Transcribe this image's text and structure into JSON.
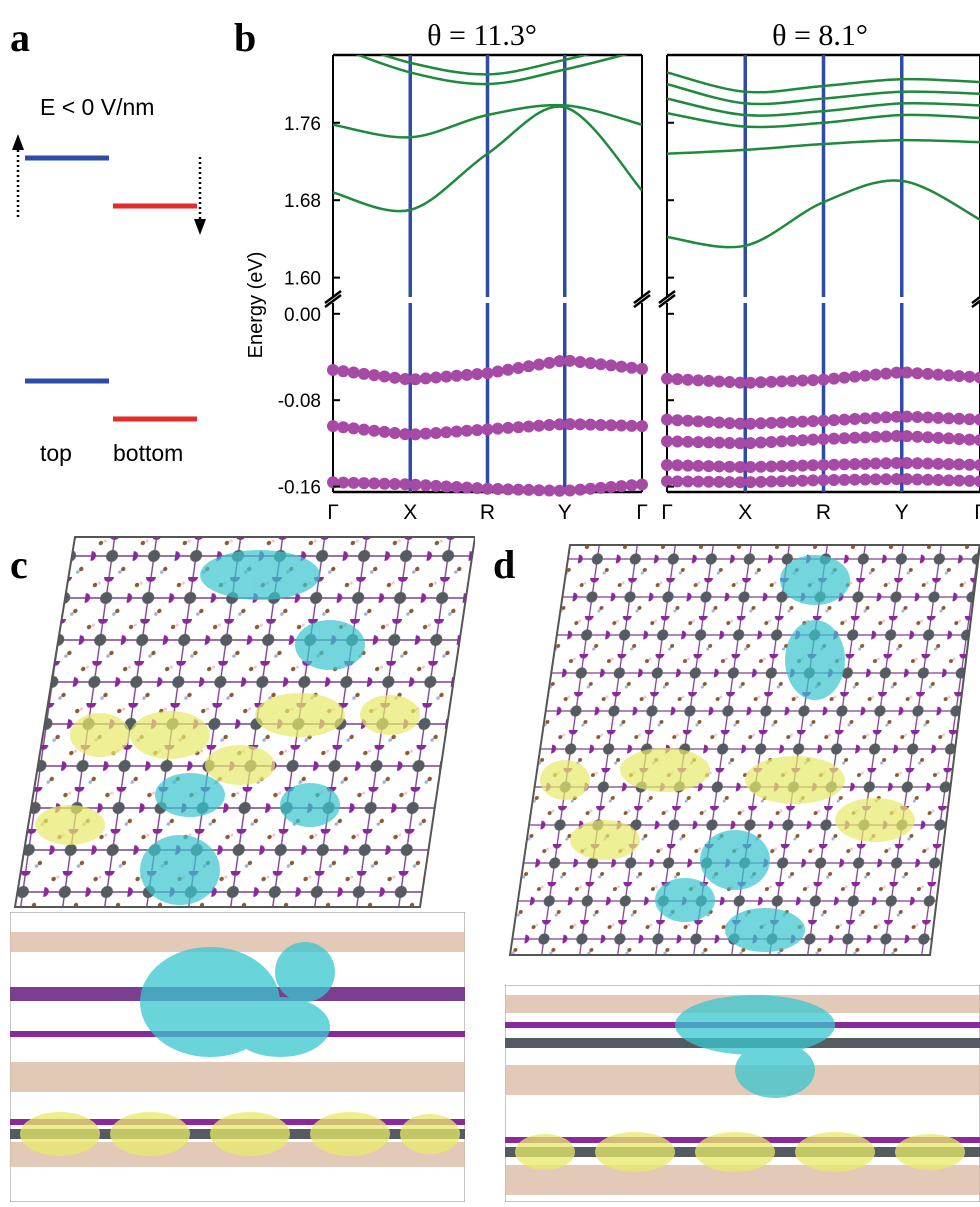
{
  "panels": {
    "a": "a",
    "b": "b",
    "c": "c",
    "d": "d"
  },
  "panel_a": {
    "field_label": "E < 0 V/nm",
    "top_label": "top",
    "bottom_label": "bottom",
    "colors": {
      "top": "#2e4ba8",
      "bottom": "#e42a2a"
    }
  },
  "panel_b": {
    "ylabel": "Energy (eV)",
    "colors": {
      "conduction": "#1e8a3c",
      "valence": "#a64aa6",
      "kline": "#2e4ba8"
    }
  },
  "chart_data": [
    {
      "type": "line",
      "title": "θ = 11.3°",
      "xlabel": "",
      "ylabel": "Energy (eV)",
      "kpoints": [
        "Γ",
        "X",
        "R",
        "Y",
        "Γ"
      ],
      "upper_ylim": [
        1.58,
        1.83
      ],
      "upper_yticks": [
        "1.76",
        "1.68",
        "1.60"
      ],
      "lower_ylim": [
        -0.165,
        0.01
      ],
      "lower_yticks": [
        "0.00",
        "-0.08",
        "-0.16"
      ],
      "axis_break": true,
      "conduction_bands_x": [
        0,
        0.25,
        0.5,
        0.75,
        1.0
      ],
      "conduction_bands": [
        [
          1.688,
          1.67,
          1.728,
          1.776,
          1.69
        ],
        [
          1.758,
          1.745,
          1.768,
          1.778,
          1.758
        ],
        [
          1.84,
          1.812,
          1.8,
          1.815,
          1.835
        ],
        [
          1.848,
          1.822,
          1.81,
          1.825,
          1.845
        ]
      ],
      "valence_bands_x": [
        0,
        0.25,
        0.5,
        0.75,
        1.0
      ],
      "valence_bands": [
        [
          -0.052,
          -0.061,
          -0.055,
          -0.043,
          -0.051
        ],
        [
          -0.104,
          -0.112,
          -0.107,
          -0.102,
          -0.104
        ],
        [
          -0.156,
          -0.158,
          -0.162,
          -0.164,
          -0.158
        ]
      ]
    },
    {
      "type": "line",
      "title": "θ = 8.1°",
      "xlabel": "",
      "ylabel": "",
      "kpoints": [
        "Γ",
        "X",
        "R",
        "Y",
        "Γ"
      ],
      "upper_ylim": [
        1.58,
        1.83
      ],
      "upper_yticks": [],
      "lower_ylim": [
        -0.165,
        0.01
      ],
      "lower_yticks": [],
      "axis_break": true,
      "conduction_bands_x": [
        0,
        0.25,
        0.5,
        0.75,
        1.0
      ],
      "conduction_bands": [
        [
          1.642,
          1.633,
          1.678,
          1.7,
          1.66
        ],
        [
          1.728,
          1.732,
          1.738,
          1.742,
          1.74
        ],
        [
          1.77,
          1.756,
          1.76,
          1.768,
          1.765
        ],
        [
          1.785,
          1.768,
          1.772,
          1.78,
          1.778
        ],
        [
          1.8,
          1.78,
          1.785,
          1.792,
          1.79
        ],
        [
          1.812,
          1.792,
          1.798,
          1.805,
          1.802
        ]
      ],
      "valence_bands_x": [
        0,
        0.25,
        0.5,
        0.75,
        1.0
      ],
      "valence_bands": [
        [
          -0.06,
          -0.064,
          -0.061,
          -0.054,
          -0.059
        ],
        [
          -0.098,
          -0.102,
          -0.099,
          -0.095,
          -0.098
        ],
        [
          -0.118,
          -0.12,
          -0.116,
          -0.113,
          -0.117
        ],
        [
          -0.14,
          -0.142,
          -0.14,
          -0.138,
          -0.14
        ],
        [
          -0.155,
          -0.156,
          -0.154,
          -0.153,
          -0.155
        ]
      ]
    }
  ]
}
